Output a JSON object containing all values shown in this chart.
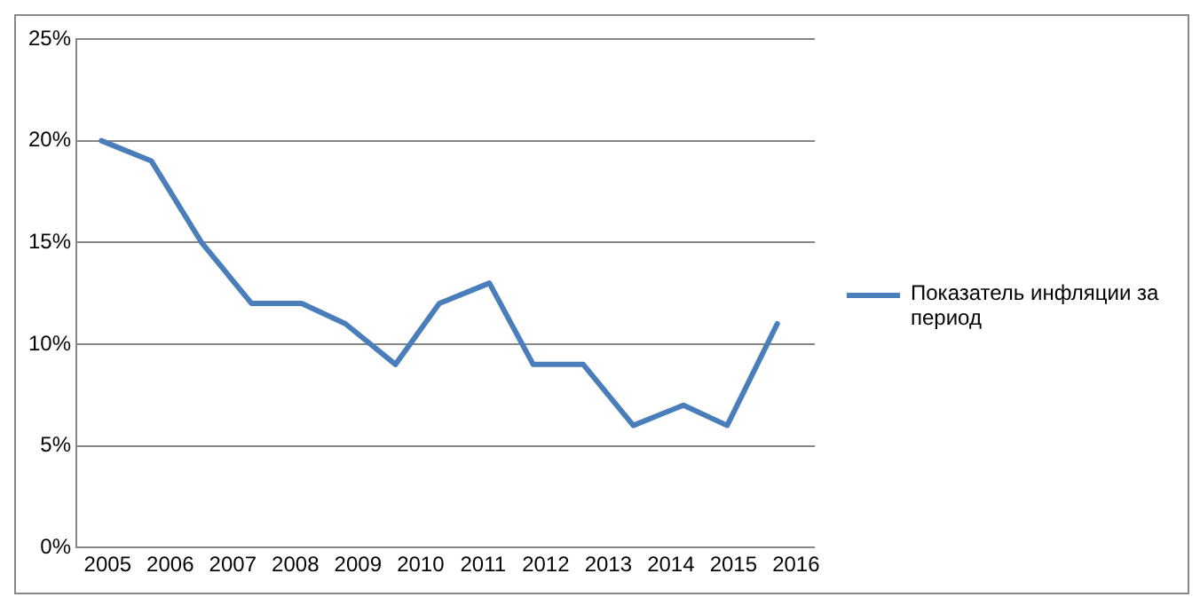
{
  "chart_data": {
    "type": "line",
    "x": [
      2004.9,
      2005.7,
      2006.5,
      2007.3,
      2008.1,
      2008.8,
      2009.6,
      2010.3,
      2011.1,
      2011.8,
      2012.6,
      2013.4,
      2014.2,
      2014.9,
      2015.7
    ],
    "series": [
      {
        "name": "Показатель инфляции за период",
        "color": "#4a7ebb",
        "values": [
          20,
          19,
          15,
          12,
          12,
          11,
          9,
          12,
          13,
          9,
          9,
          6,
          7,
          6,
          11
        ]
      }
    ],
    "xlim": [
      2004.5,
      2016.3
    ],
    "xticks": [
      2005,
      2006,
      2007,
      2008,
      2009,
      2010,
      2011,
      2012,
      2013,
      2014,
      2015,
      2016
    ],
    "ylim": [
      0,
      25
    ],
    "yticks": [
      {
        "value": 0,
        "label": "0%"
      },
      {
        "value": 5,
        "label": "5%"
      },
      {
        "value": 10,
        "label": "10%"
      },
      {
        "value": 15,
        "label": "15%"
      },
      {
        "value": 20,
        "label": "20%"
      },
      {
        "value": 25,
        "label": "25%"
      }
    ],
    "grid": "y",
    "legend": "right",
    "marker": "none",
    "line_style": "solid"
  }
}
